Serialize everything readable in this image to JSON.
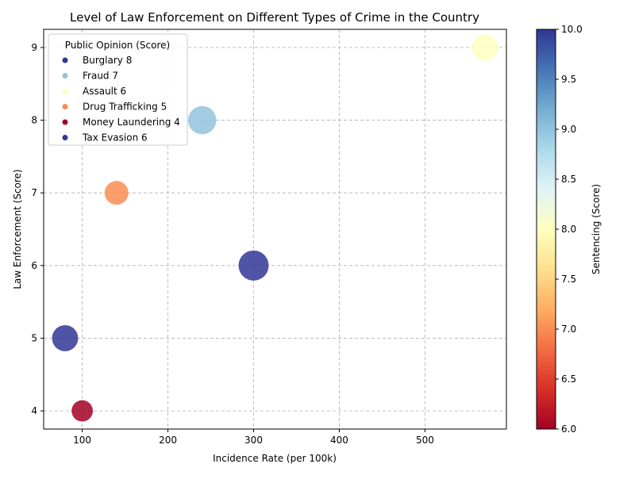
{
  "chart_data": {
    "type": "scatter",
    "title": "Level of Law Enforcement on Different Types of Crime in the Country",
    "xlabel": "Incidence Rate (per 100k)",
    "ylabel": "Law Enforcement (Score)",
    "xlim": [
      55,
      595
    ],
    "ylim": [
      3.75,
      9.25
    ],
    "xticks": [
      100,
      200,
      300,
      400,
      500
    ],
    "yticks": [
      4,
      5,
      6,
      7,
      8,
      9
    ],
    "grid": true,
    "legend": {
      "title": "Public Opinion (Score)",
      "placement": "upper-left"
    },
    "colorbar": {
      "label": "Sentencing (Score)",
      "min": 6.0,
      "max": 10.0,
      "ticks": [
        "6.0",
        "6.5",
        "7.0",
        "7.5",
        "8.0",
        "8.5",
        "9.0",
        "9.5",
        "10.0"
      ],
      "colormap": "RdYlBu"
    },
    "points": [
      {
        "label": "Burglary 8",
        "x": 300,
        "y": 6,
        "sentencing": 10,
        "public_opinion": 8
      },
      {
        "label": "Fraud 7",
        "x": 240,
        "y": 8,
        "sentencing": 9,
        "public_opinion": 7
      },
      {
        "label": "Assault 6",
        "x": 570,
        "y": 9,
        "sentencing": 8,
        "public_opinion": 6
      },
      {
        "label": "Drug Trafficking 5",
        "x": 140,
        "y": 7,
        "sentencing": 7,
        "public_opinion": 5
      },
      {
        "label": "Money Laundering 4",
        "x": 100,
        "y": 4,
        "sentencing": 6,
        "public_opinion": 4
      },
      {
        "label": "Tax Evasion 6",
        "x": 80,
        "y": 5,
        "sentencing": 10,
        "public_opinion": 6
      }
    ]
  }
}
